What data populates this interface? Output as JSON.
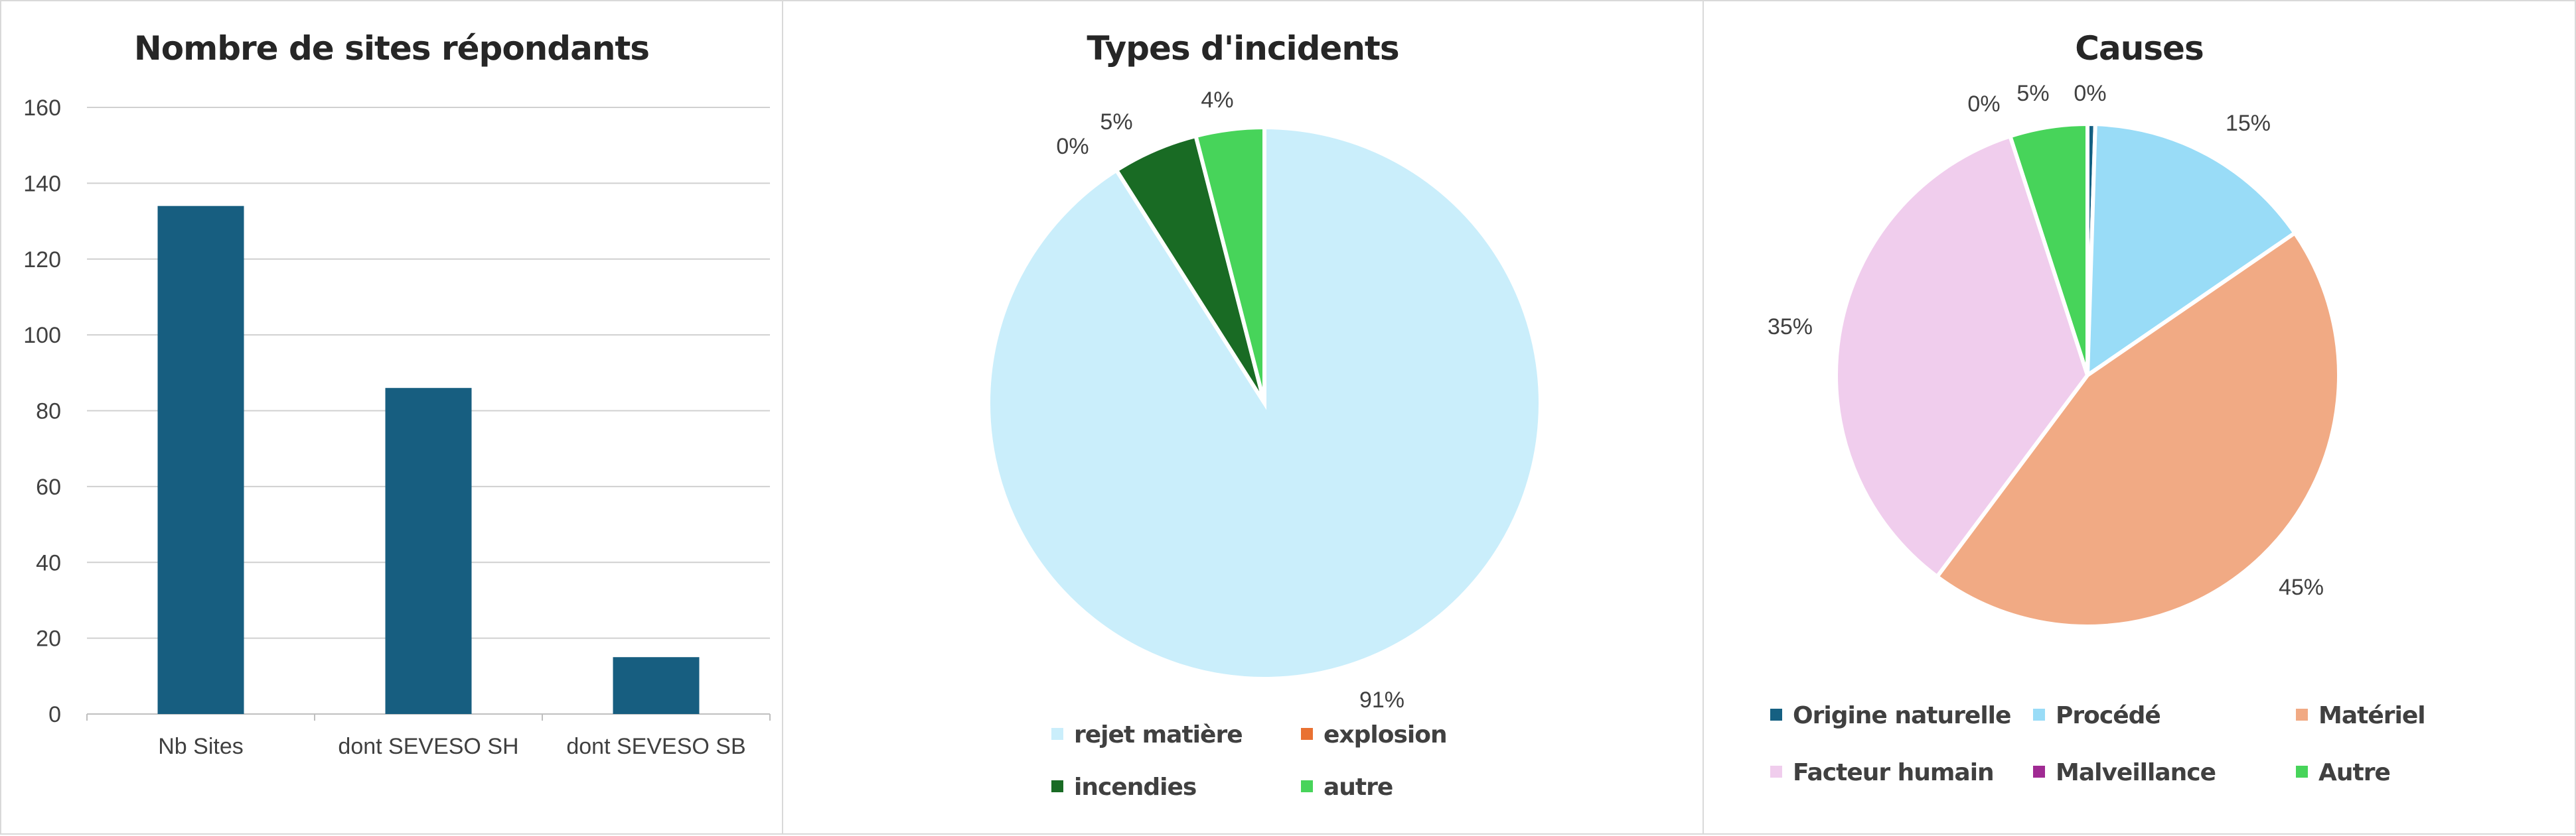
{
  "chart_data": [
    {
      "type": "bar",
      "title": "Nombre de sites répondants",
      "categories": [
        "Nb Sites",
        "dont SEVESO SH",
        "dont SEVESO SB"
      ],
      "values": [
        134,
        86,
        15
      ],
      "ylim": [
        0,
        160
      ],
      "yticks": [
        "0",
        "20",
        "40",
        "60",
        "80",
        "100",
        "120",
        "140",
        "160"
      ],
      "grid": true,
      "color": "#175e80"
    },
    {
      "type": "pie",
      "title": "Types d'incidents",
      "slices": [
        {
          "label": "rejet matière",
          "value": 91,
          "text": "91%",
          "color": "#caeefb"
        },
        {
          "label": "explosion",
          "value": 0,
          "text": "0%",
          "color": "#e97132"
        },
        {
          "label": "incendies",
          "value": 5,
          "text": "5%",
          "color": "#196b24"
        },
        {
          "label": "autre",
          "value": 4,
          "text": "4%",
          "color": "#47d45a"
        }
      ],
      "legend": "bottom"
    },
    {
      "type": "pie",
      "title": "Causes",
      "slices": [
        {
          "label": "Origine naturelle",
          "value": 0.5,
          "text": "0%",
          "color": "#156082"
        },
        {
          "label": "Procédé",
          "value": 15,
          "text": "15%",
          "color": "#99dcf7"
        },
        {
          "label": "Matériel",
          "value": 45,
          "text": "45%",
          "color": "#f1aa84"
        },
        {
          "label": "Facteur humain",
          "value": 35,
          "text": "35%",
          "color": "#f0cded"
        },
        {
          "label": "Malveillance",
          "value": 0,
          "text": "0%",
          "color": "#a02b93"
        },
        {
          "label": "Autre",
          "value": 5,
          "text": "5%",
          "color": "#47d45a"
        }
      ],
      "legend": "bottom"
    }
  ]
}
